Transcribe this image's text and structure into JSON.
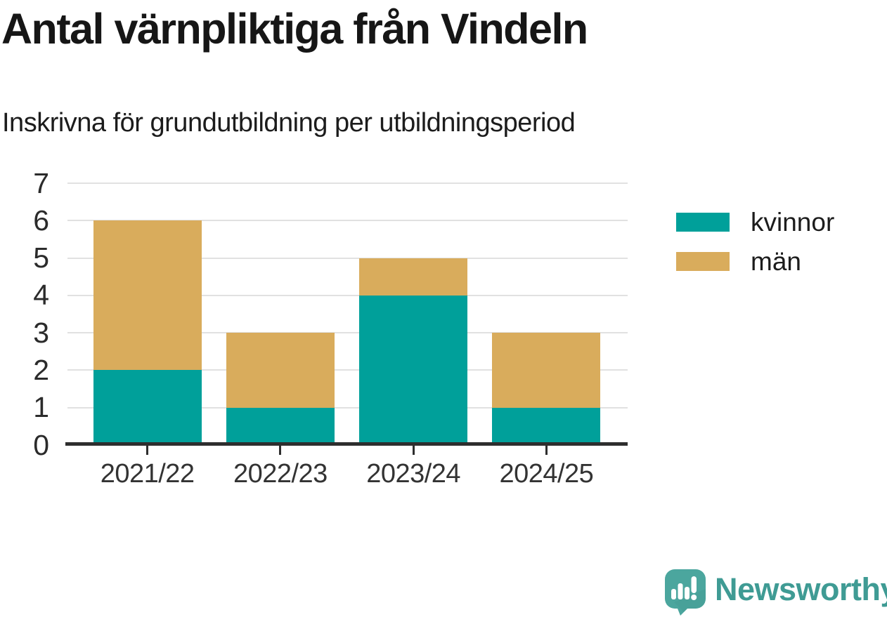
{
  "chart_data": {
    "type": "bar",
    "stacked": true,
    "title": "Antal värnpliktiga från Vindeln",
    "subtitle": "Inskrivna för grundutbildning per utbildningsperiod",
    "categories": [
      "2021/22",
      "2022/23",
      "2023/24",
      "2024/25"
    ],
    "series": [
      {
        "name": "kvinnor",
        "color": "#00a09a",
        "values": [
          2,
          1,
          4,
          1
        ]
      },
      {
        "name": "män",
        "color": "#d9ac5c",
        "values": [
          4,
          2,
          1,
          2
        ]
      }
    ],
    "totals": [
      6,
      3,
      5,
      3
    ],
    "xlabel": "",
    "ylabel": "",
    "ylim": [
      0,
      7
    ],
    "yticks": [
      0,
      1,
      2,
      3,
      4,
      5,
      6,
      7
    ],
    "grid": true,
    "legend_position": "right"
  },
  "colors": {
    "kvinnor": "#00a09a",
    "man": "#d9ac5c",
    "gridline": "#e1e1e1",
    "axis": "#2e2e2e",
    "brand_teal": "#3f9b94",
    "logo_bubble": "#4ba69e"
  },
  "branding": {
    "logo_text": "Newsworthy"
  }
}
